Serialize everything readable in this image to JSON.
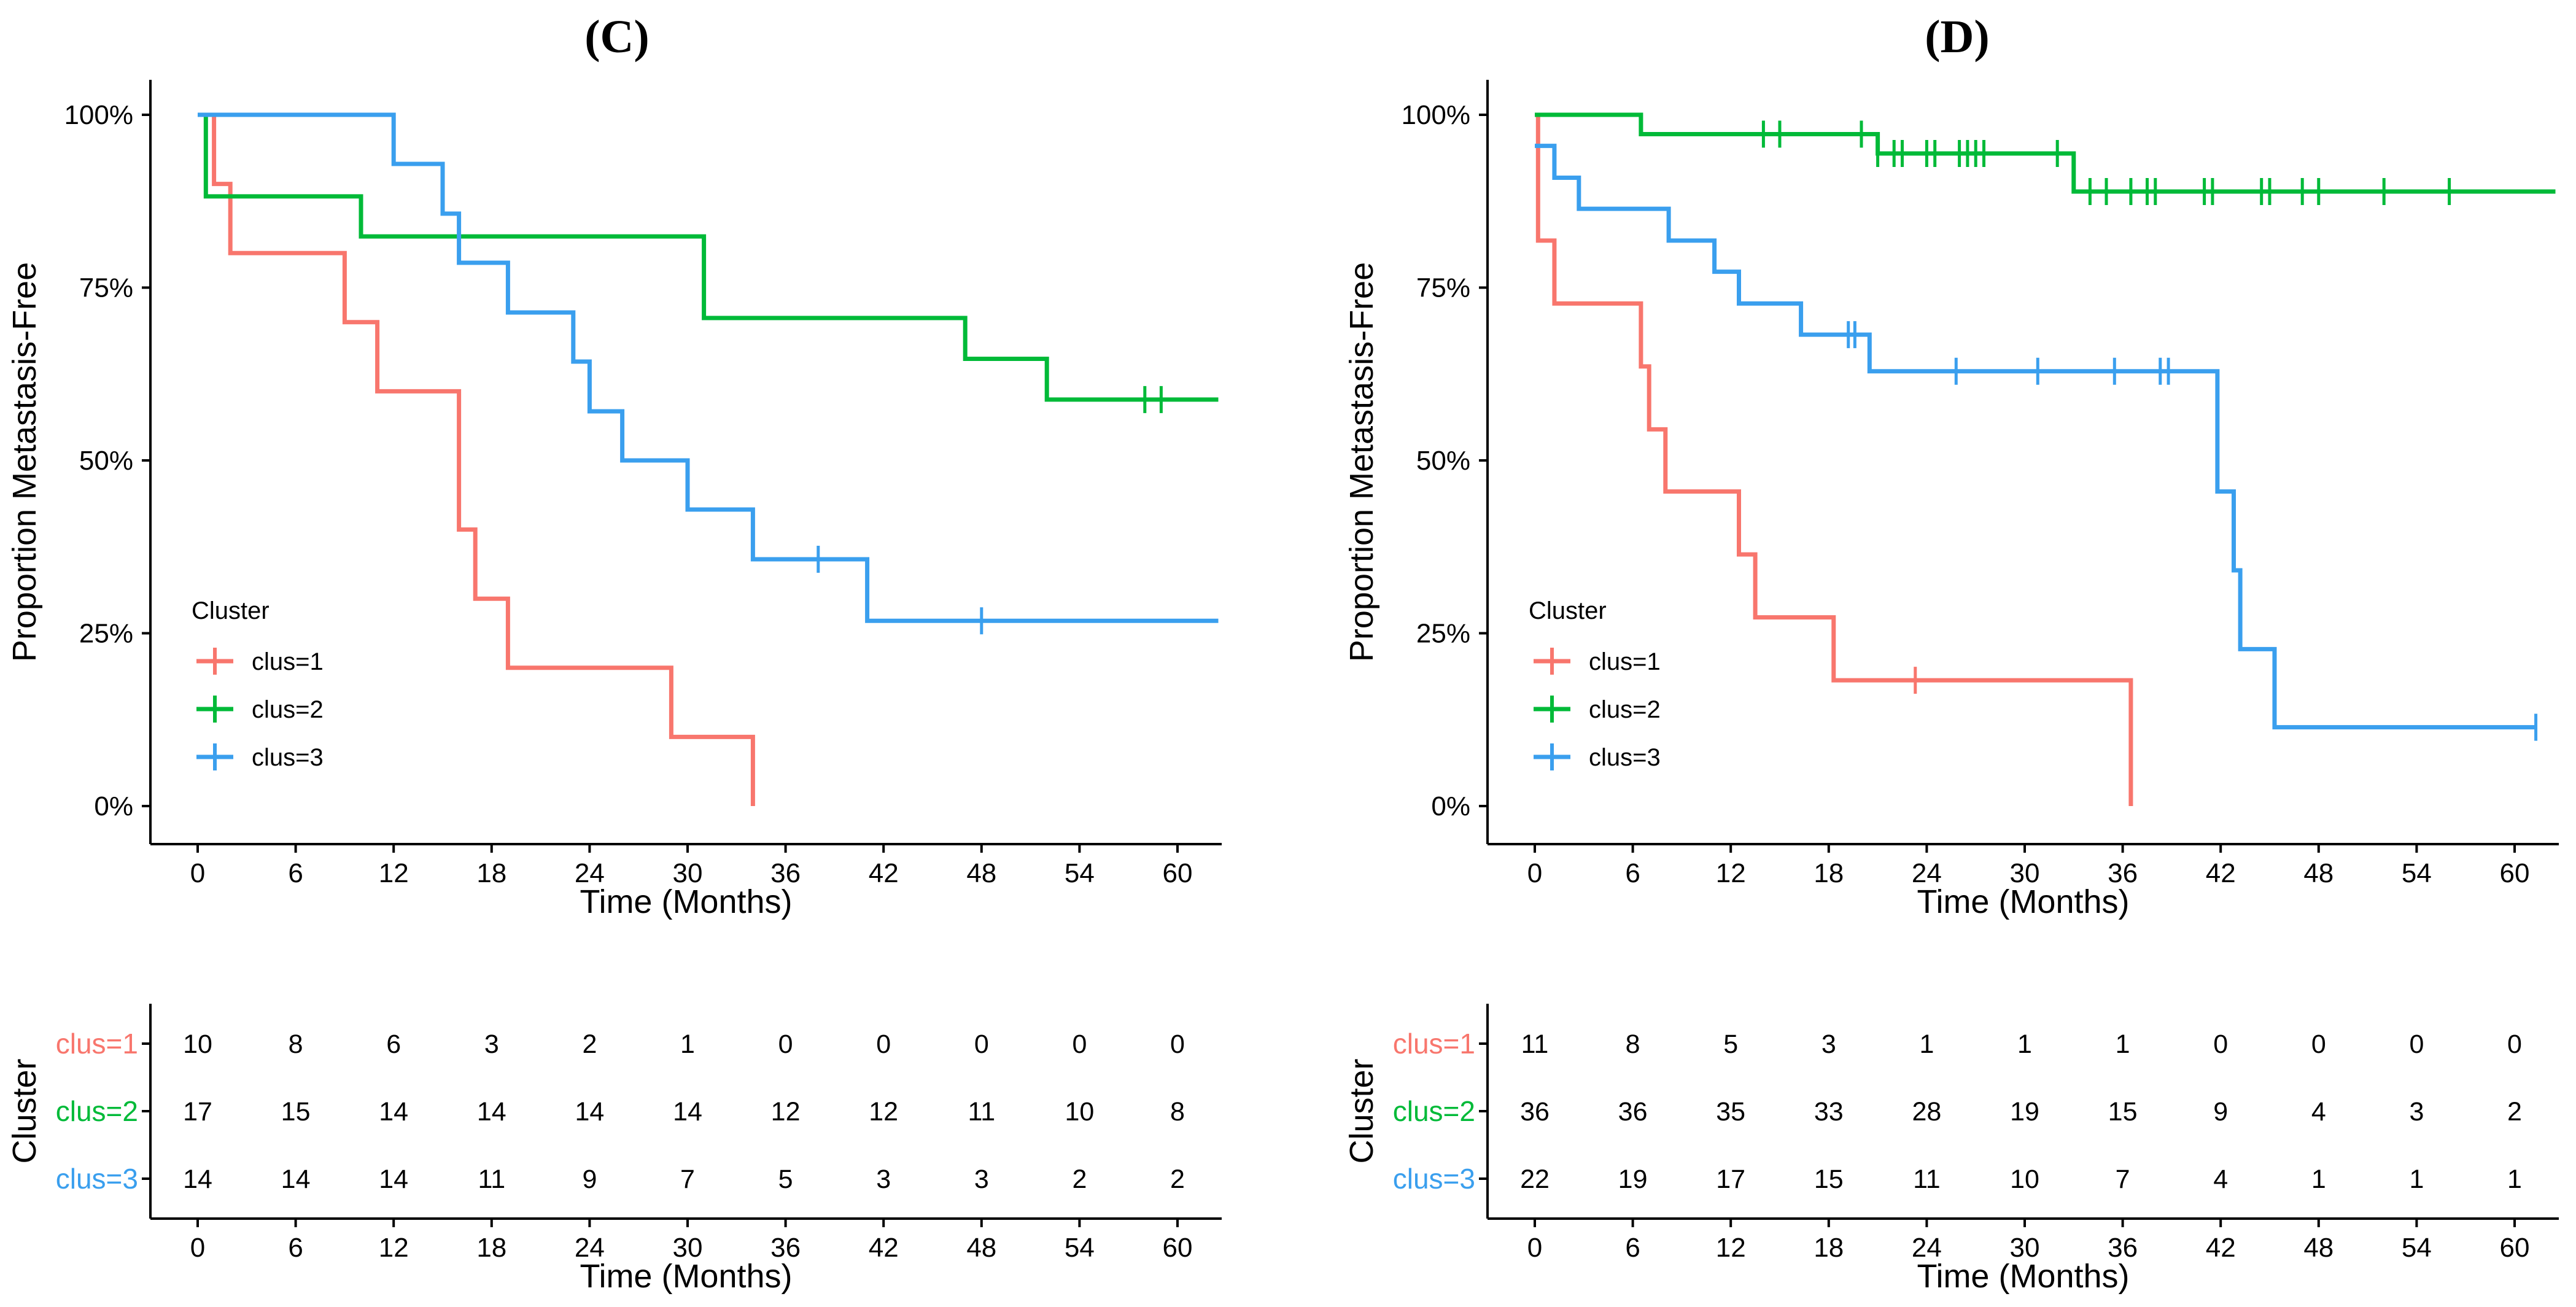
{
  "colors": {
    "clus1": "#F8766D",
    "clus2": "#00BA38",
    "clus3": "#3A9FEE",
    "axis": "#000000"
  },
  "chart_data": [
    {
      "type": "line",
      "title": "(C)",
      "xlabel": "Time (Months)",
      "ylabel": "Proportion Metastasis-Free",
      "xlim": [
        0,
        62.5
      ],
      "ylim": [
        0,
        1
      ],
      "xticks": [
        0,
        6,
        12,
        18,
        24,
        30,
        36,
        42,
        48,
        54,
        60
      ],
      "xtick_labels": [
        "0",
        "6",
        "12",
        "18",
        "24",
        "30",
        "36",
        "42",
        "48",
        "54",
        "60"
      ],
      "yticks": [
        0,
        0.25,
        0.5,
        0.75,
        1
      ],
      "ytick_labels": [
        "0%",
        "25%",
        "50%",
        "75%",
        "100%"
      ],
      "legend": {
        "title": "Cluster",
        "position": "left-middle",
        "entries": [
          "clus=1",
          "clus=2",
          "clus=3"
        ]
      },
      "series": [
        {
          "name": "clus=1",
          "color_key": "clus1",
          "x": [
            0,
            1,
            2,
            9,
            11,
            16,
            17,
            19,
            29,
            34
          ],
          "y": [
            1.0,
            0.9,
            0.8,
            0.7,
            0.6,
            0.4,
            0.3,
            0.2,
            0.1,
            0.0
          ],
          "end": 34,
          "censor_x": []
        },
        {
          "name": "clus=2",
          "color_key": "clus2",
          "x": [
            0,
            0.5,
            10,
            31,
            47,
            52
          ],
          "y": [
            1.0,
            0.882,
            0.824,
            0.706,
            0.647,
            0.588
          ],
          "end": 62.5,
          "censor_x": [
            58,
            59
          ]
        },
        {
          "name": "clus=3",
          "color_key": "clus3",
          "x": [
            0,
            12,
            15,
            16,
            19,
            23,
            24,
            26,
            30,
            34,
            41
          ],
          "y": [
            1.0,
            0.929,
            0.857,
            0.786,
            0.714,
            0.643,
            0.571,
            0.5,
            0.429,
            0.357,
            0.268
          ],
          "end": 62.5,
          "censor_x": [
            38,
            48
          ]
        }
      ],
      "risk_table": {
        "ylabel": "Cluster",
        "xlabel": "Time (Months)",
        "strata": [
          "clus=1",
          "clus=2",
          "clus=3"
        ],
        "times": [
          "0",
          "6",
          "12",
          "18",
          "24",
          "30",
          "36",
          "42",
          "48",
          "54",
          "60"
        ],
        "counts": [
          [
            "10",
            "8",
            "6",
            "3",
            "2",
            "1",
            "0",
            "0",
            "0",
            "0",
            "0"
          ],
          [
            "17",
            "15",
            "14",
            "14",
            "14",
            "14",
            "12",
            "12",
            "11",
            "10",
            "8"
          ],
          [
            "14",
            "14",
            "14",
            "11",
            "9",
            "7",
            "5",
            "3",
            "3",
            "2",
            "2"
          ]
        ]
      }
    },
    {
      "type": "line",
      "title": "(D)",
      "xlabel": "Time (Months)",
      "ylabel": "Proportion Metastasis-Free",
      "xlim": [
        0,
        62.5
      ],
      "ylim": [
        0,
        1
      ],
      "xticks": [
        0,
        6,
        12,
        18,
        24,
        30,
        36,
        42,
        48,
        54,
        60
      ],
      "xtick_labels": [
        "0",
        "6",
        "12",
        "18",
        "24",
        "30",
        "36",
        "42",
        "48",
        "54",
        "60"
      ],
      "yticks": [
        0,
        0.25,
        0.5,
        0.75,
        1
      ],
      "ytick_labels": [
        "0%",
        "25%",
        "50%",
        "75%",
        "100%"
      ],
      "legend": {
        "title": "Cluster",
        "position": "left-middle",
        "entries": [
          "clus=1",
          "clus=2",
          "clus=3"
        ]
      },
      "series": [
        {
          "name": "clus=1",
          "color_key": "clus1",
          "x": [
            0,
            0.2,
            1.2,
            6.5,
            7,
            8,
            12.5,
            13.5,
            18.3,
            36.5
          ],
          "y": [
            1.0,
            0.818,
            0.727,
            0.636,
            0.545,
            0.455,
            0.364,
            0.273,
            0.182,
            0.0
          ],
          "end": 36.5,
          "censor_x": [
            23.3
          ]
        },
        {
          "name": "clus=2",
          "color_key": "clus2",
          "x": [
            0,
            6.5,
            21,
            33
          ],
          "y": [
            1.0,
            0.972,
            0.944,
            0.889
          ],
          "end": 62.5,
          "censor_x": [
            14,
            15,
            20,
            21,
            22,
            22.5,
            24,
            24.5,
            26,
            26.5,
            27,
            27.5,
            32,
            34,
            35,
            36.5,
            37.5,
            38,
            41,
            41.5,
            44.5,
            45,
            47,
            48,
            52,
            56
          ]
        },
        {
          "name": "clus=3",
          "color_key": "clus3",
          "x": [
            0,
            1.2,
            2.7,
            8.2,
            11,
            12.5,
            16.3,
            20.5,
            41.8,
            42.8,
            43.2,
            45.3
          ],
          "y": [
            0.955,
            0.909,
            0.864,
            0.818,
            0.773,
            0.727,
            0.682,
            0.629,
            0.455,
            0.341,
            0.227,
            0.114
          ],
          "end": 61.3,
          "censor_x": [
            19.2,
            19.6,
            25.8,
            30.8,
            35.5,
            38.3,
            38.8,
            61.3
          ]
        }
      ],
      "risk_table": {
        "ylabel": "Cluster",
        "xlabel": "Time (Months)",
        "strata": [
          "clus=1",
          "clus=2",
          "clus=3"
        ],
        "times": [
          "0",
          "6",
          "12",
          "18",
          "24",
          "30",
          "36",
          "42",
          "48",
          "54",
          "60"
        ],
        "counts": [
          [
            "11",
            "8",
            "5",
            "3",
            "1",
            "1",
            "1",
            "0",
            "0",
            "0",
            "0"
          ],
          [
            "36",
            "36",
            "35",
            "33",
            "28",
            "19",
            "15",
            "9",
            "4",
            "3",
            "2"
          ],
          [
            "22",
            "19",
            "17",
            "15",
            "11",
            "10",
            "7",
            "4",
            "1",
            "1",
            "1"
          ]
        ]
      }
    }
  ]
}
